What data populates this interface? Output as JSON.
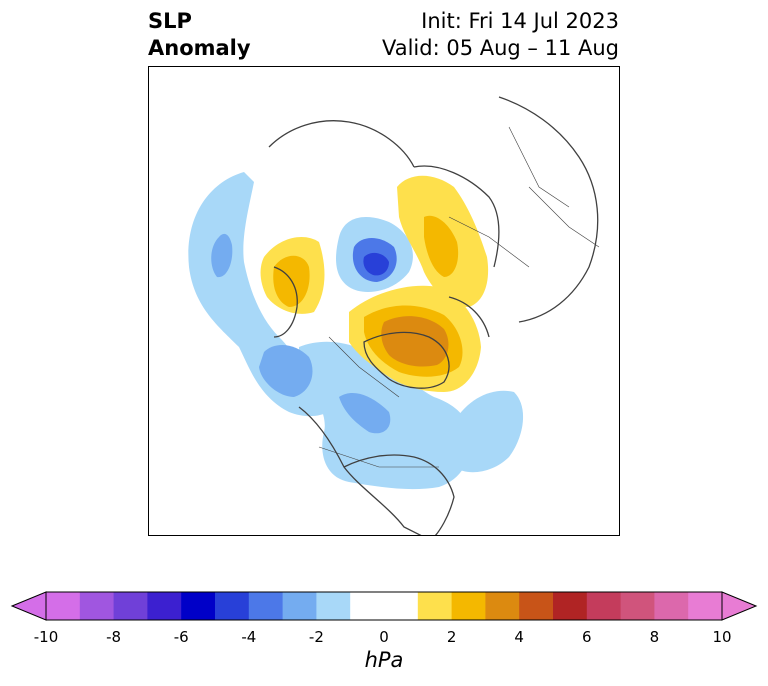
{
  "title": {
    "left_line1": "SLP",
    "left_line2": "Anomaly",
    "right_line1": "Init: Fri 14 Jul 2023",
    "right_line2": "Valid: 05 Aug – 11 Aug"
  },
  "colorbar": {
    "label": "hPa",
    "ticks": [
      "-10",
      "-8",
      "-6",
      "-4",
      "-2",
      "0",
      "2",
      "4",
      "6",
      "8",
      "10"
    ],
    "colors": [
      "#d46ee8",
      "#a056e0",
      "#7040d8",
      "#3c20d0",
      "#0000c8",
      "#2840d8",
      "#4c78e8",
      "#74acf0",
      "#a8d8f8",
      "#ffffff",
      "#ffffff",
      "#fee04c",
      "#f4b800",
      "#dc8a10",
      "#c85418",
      "#b02424",
      "#c43c5c",
      "#d0547c",
      "#dc68ac",
      "#e87cd4"
    ]
  },
  "map": {
    "name": "Northern Hemisphere polar stereographic",
    "land_color": "#ffffff",
    "border_color": "#404040"
  }
}
